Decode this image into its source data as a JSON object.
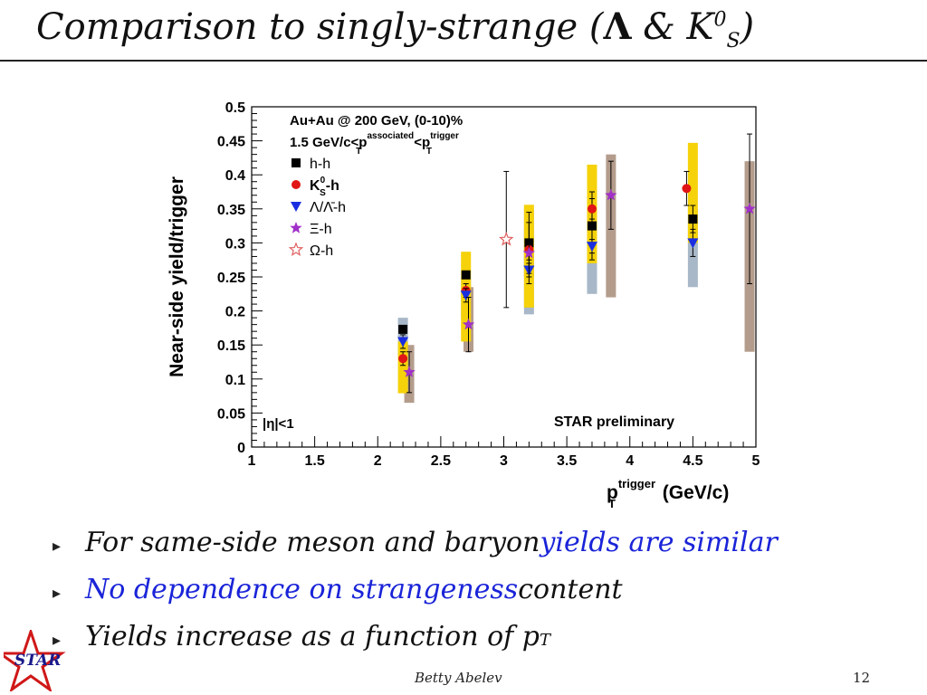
{
  "slide": {
    "title_main": "Comparison to singly-strange (",
    "title_lambda": "Λ",
    "title_amp": " & K",
    "title_sup": "0",
    "title_sub": "S",
    "title_close": ")",
    "author": "Betty Abelev",
    "page_number": "12",
    "logo_text": "STAR"
  },
  "bullets": [
    {
      "parts": [
        {
          "text": "For same-side meson and baryon ",
          "color": "normal"
        },
        {
          "text": "yields are similar",
          "color": "blue"
        }
      ]
    },
    {
      "parts": [
        {
          "text": "No dependence on strangeness",
          "color": "blue"
        },
        {
          "text": " content",
          "color": "normal"
        }
      ]
    },
    {
      "parts": [
        {
          "text": "Yields increase as a function of p",
          "color": "normal"
        }
      ],
      "sub": "T"
    }
  ],
  "chart_data": {
    "type": "scatter",
    "ylabel": "Near-side yield/trigger",
    "xlabel_main": "p",
    "xlabel_sup": "trigger",
    "xlabel_sub": "T",
    "xlabel_unit": "(GeV/c)",
    "xlim": [
      1,
      5
    ],
    "ylim": [
      0,
      0.5
    ],
    "x_ticks": [
      "1",
      "1.5",
      "2",
      "2.5",
      "3",
      "3.5",
      "4",
      "4.5",
      "5"
    ],
    "y_ticks": [
      "0",
      "0.05",
      "0.1",
      "0.15",
      "0.2",
      "0.25",
      "0.3",
      "0.35",
      "0.4",
      "0.45",
      "0.5"
    ],
    "annotations": {
      "line1": "Au+Au @ 200 GeV, (0-10)%",
      "line2_a": "1.5 GeV/c<p",
      "line2_sup1": "associated",
      "line2_sub1": "T",
      "line2_b": "<p",
      "line2_sup2": "trigger",
      "line2_sub2": "T",
      "eta_cut": "|η|<1",
      "preliminary": "STAR preliminary"
    },
    "colors": {
      "yellow_band": "#f5d20a",
      "grey_band": "#a8b8c8",
      "brown_band": "#b49c8c"
    },
    "series": [
      {
        "name": "h-h",
        "legend_label": "h-h",
        "marker": "square",
        "color": "#000000",
        "x": [
          2.2,
          2.7,
          3.2,
          3.7,
          4.5
        ],
        "y": [
          0.173,
          0.253,
          0.3,
          0.325,
          0.335
        ],
        "err": [
          0,
          0,
          0.045,
          0.05,
          0.02
        ],
        "sys_band": {
          "color": "yellow",
          "lo": [
            0.079,
            0.155,
            0.205,
            0.27,
            0.3
          ],
          "hi": [
            0.155,
            0.287,
            0.356,
            0.415,
            0.447
          ]
        }
      },
      {
        "name": "K0S-h",
        "legend_label": "K",
        "legend_sup": "0",
        "legend_sub": "S",
        "legend_tail": "-h",
        "marker": "circle",
        "color": "#e11515",
        "x": [
          2.2,
          2.7,
          3.2,
          3.7,
          4.45
        ],
        "y": [
          0.13,
          0.23,
          0.29,
          0.35,
          0.38
        ],
        "err": [
          0.01,
          0.01,
          0.015,
          0.015,
          0.025
        ]
      },
      {
        "name": "Λ/Λ̄-h",
        "legend_label": "Λ/Λ̄-h",
        "marker": "triangle-down",
        "color": "#1a2ee0",
        "x": [
          2.2,
          2.7,
          3.2,
          3.7,
          4.5
        ],
        "y": [
          0.155,
          0.223,
          0.26,
          0.295,
          0.3
        ],
        "err": [
          0.01,
          0.01,
          0.01,
          0.01,
          0.02
        ],
        "sys_band": {
          "color": "grey",
          "lo": [
            0.13,
            0.19,
            0.195,
            0.225,
            0.235
          ],
          "hi": [
            0.19,
            0.248,
            0.35,
            0.35,
            0.35
          ]
        }
      },
      {
        "name": "Ξ-h",
        "legend_label": "Ξ-h",
        "marker": "star",
        "color": "#a030c8",
        "x": [
          2.25,
          2.72,
          3.2,
          3.85,
          4.95
        ],
        "y": [
          0.11,
          0.18,
          0.285,
          0.37,
          0.35
        ],
        "err": [
          0.03,
          0.04,
          0.045,
          0.05,
          0.11
        ],
        "sys_band": {
          "color": "brown",
          "lo": [
            0.065,
            0.14,
            0.25,
            0.22,
            0.14
          ],
          "hi": [
            0.15,
            0.235,
            0.32,
            0.43,
            0.42
          ]
        }
      },
      {
        "name": "Ω-h",
        "legend_label": "Ω-h",
        "marker": "star-open",
        "color": "#e06060",
        "x": [
          3.02
        ],
        "y": [
          0.305
        ],
        "err": [
          0.1
        ]
      }
    ]
  }
}
